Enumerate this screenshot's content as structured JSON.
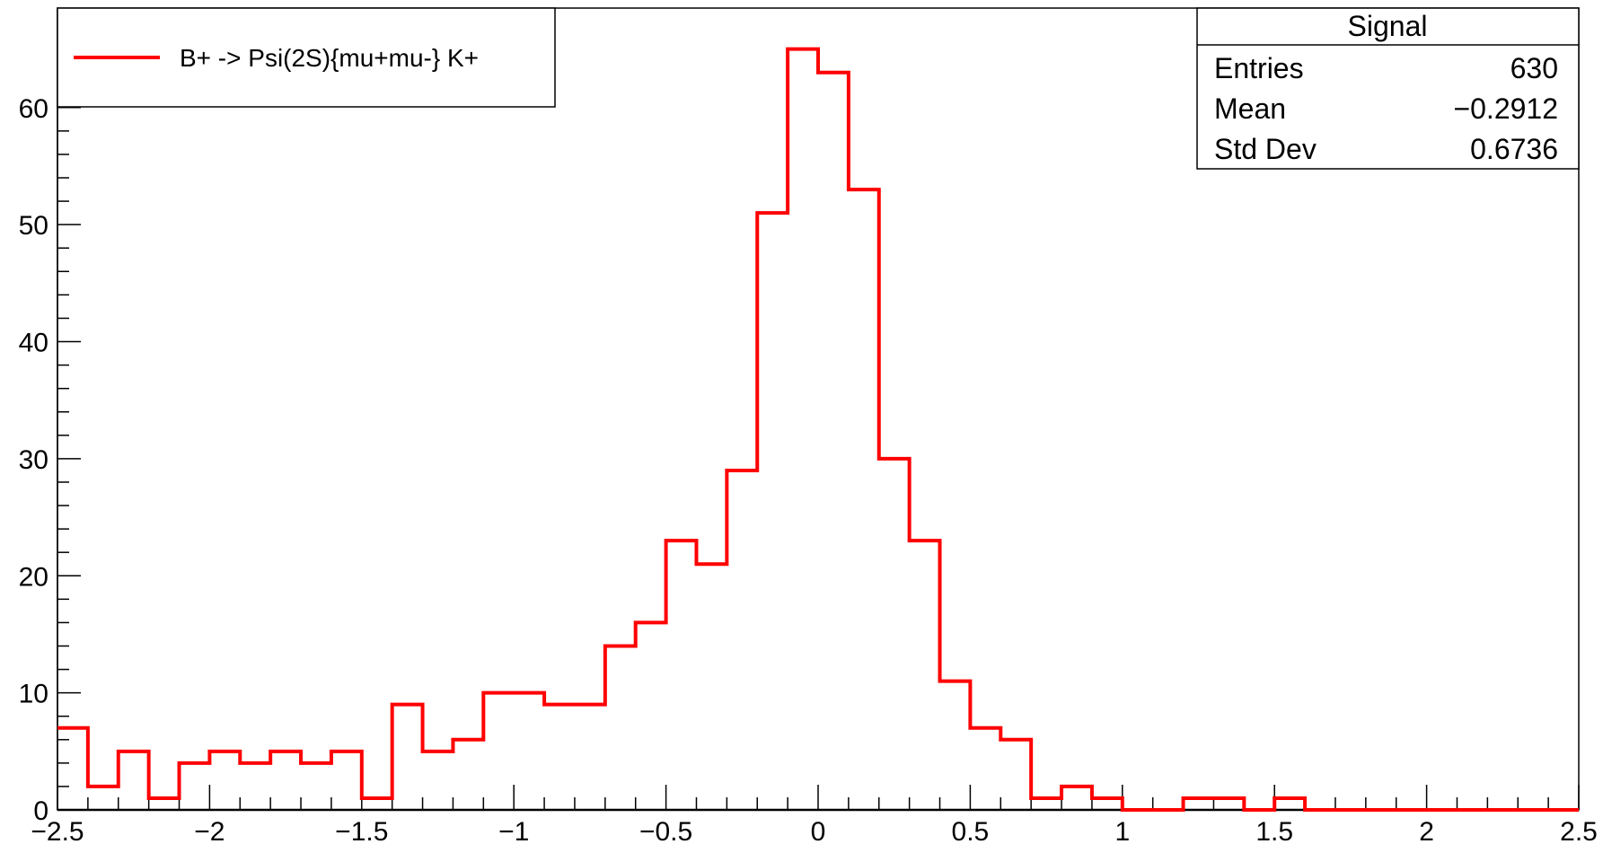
{
  "chart_data": {
    "type": "histogram",
    "xlim": [
      -2.5,
      2.5
    ],
    "ylim": [
      0,
      68.5
    ],
    "x_ticks": [
      -2.5,
      -2,
      -1.5,
      -1,
      -0.5,
      0,
      0.5,
      1,
      1.5,
      2,
      2.5
    ],
    "x_tick_labels": [
      "−2.5",
      "−2",
      "−1.5",
      "−1",
      "−0.5",
      "0",
      "0.5",
      "1",
      "1.5",
      "2",
      "2.5"
    ],
    "y_ticks": [
      0,
      10,
      20,
      30,
      40,
      50,
      60
    ],
    "y_tick_labels": [
      "0",
      "10",
      "20",
      "30",
      "40",
      "50",
      "60"
    ],
    "bin_edges_start": -2.5,
    "bin_width": 0.1,
    "values": [
      7,
      2,
      5,
      1,
      4,
      5,
      4,
      5,
      4,
      5,
      1,
      9,
      5,
      6,
      10,
      10,
      9,
      9,
      14,
      16,
      23,
      21,
      29,
      51,
      65,
      63,
      53,
      30,
      23,
      11,
      7,
      6,
      1,
      2,
      1,
      0,
      0,
      1,
      1,
      0,
      1,
      0,
      0,
      0,
      0,
      0,
      0,
      0,
      0,
      0
    ],
    "series_color": "#ff0000",
    "legend": {
      "position": "top-left",
      "entries": [
        {
          "label": "B+ -> Psi(2S){mu+mu-} K+",
          "color": "#ff0000"
        }
      ]
    },
    "stats_box": {
      "position": "top-right",
      "title": "Signal",
      "rows": [
        {
          "label": "Entries",
          "value": "630"
        },
        {
          "label": "Mean",
          "value": "−0.2912"
        },
        {
          "label": "Std Dev",
          "value": "0.6736"
        }
      ]
    }
  }
}
